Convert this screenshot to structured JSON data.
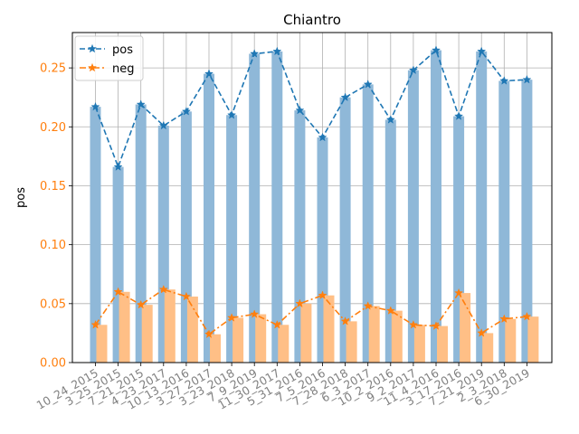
{
  "chart_data": {
    "type": "bar",
    "title": "Chiantro",
    "xlabel": "",
    "ylabel": "pos",
    "ylim": [
      0,
      0.28
    ],
    "yticks": [
      "0.00",
      "0.05",
      "0.10",
      "0.15",
      "0.20",
      "0.25"
    ],
    "grid": true,
    "legend_position": "top-left",
    "categories": [
      "10_24_2015",
      "3_25_2015",
      "7_21_2015",
      "4_23_2017",
      "10_13_2016",
      "3_27_2017",
      "3_23_2018",
      "7_9_2019",
      "11_30_2017",
      "5_31_2016",
      "7_5_2016",
      "7_28_2018",
      "6_3_2017",
      "10_2_2016",
      "9_2_2017",
      "11_4_2016",
      "3_17_2016",
      "7_21_2019",
      "2_3_2018",
      "6_30_2019"
    ],
    "series": [
      {
        "name": "pos",
        "kind": "bar+line",
        "color": "#1f77b4",
        "bar_color": "#8fb8d8",
        "line_style": "dashed",
        "marker": "star",
        "values": [
          0.217,
          0.166,
          0.219,
          0.201,
          0.213,
          0.245,
          0.21,
          0.262,
          0.264,
          0.214,
          0.191,
          0.225,
          0.236,
          0.206,
          0.248,
          0.265,
          0.209,
          0.264,
          0.239,
          0.24
        ]
      },
      {
        "name": "neg",
        "kind": "bar+line",
        "color": "#ff7f0e",
        "bar_color": "#ffbf86",
        "line_style": "dashdot",
        "marker": "star",
        "values": [
          0.032,
          0.06,
          0.049,
          0.062,
          0.056,
          0.024,
          0.038,
          0.041,
          0.032,
          0.05,
          0.057,
          0.035,
          0.048,
          0.044,
          0.032,
          0.031,
          0.059,
          0.025,
          0.037,
          0.039
        ]
      }
    ]
  }
}
